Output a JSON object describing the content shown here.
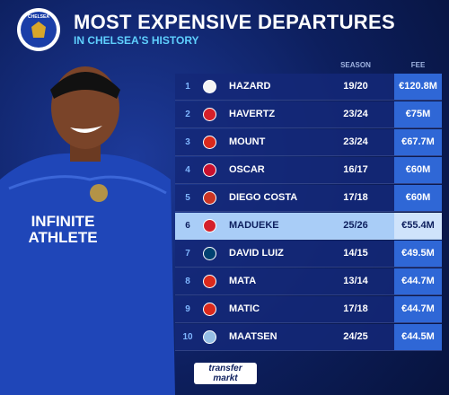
{
  "header": {
    "crest": "CHELSEA",
    "title": "MOST EXPENSIVE DEPARTURES",
    "subtitle": "IN CHELSEA'S HISTORY"
  },
  "table": {
    "columns": [
      "SEASON",
      "FEE"
    ],
    "rows": [
      [
        "1",
        "HAZARD",
        "19/20",
        "€120.8M"
      ],
      [
        "2",
        "HAVERTZ",
        "23/24",
        "€75M"
      ],
      [
        "3",
        "MOUNT",
        "23/24",
        "€67.7M"
      ],
      [
        "4",
        "OSCAR",
        "16/17",
        "€60M"
      ],
      [
        "5",
        "DIEGO COSTA",
        "17/18",
        "€60M"
      ],
      [
        "6",
        "MADUEKE",
        "25/26",
        "€55.4M"
      ],
      [
        "7",
        "DAVID LUIZ",
        "14/15",
        "€49.5M"
      ],
      [
        "8",
        "MATA",
        "13/14",
        "€44.7M"
      ],
      [
        "9",
        "MATIC",
        "17/18",
        "€44.7M"
      ],
      [
        "10",
        "MAATSEN",
        "24/25",
        "€44.5M"
      ]
    ]
  },
  "player": {
    "shirt": [
      "INFINITE",
      "ATHLETE"
    ]
  },
  "footer": {
    "logo": [
      "transfer",
      "markt"
    ]
  }
}
